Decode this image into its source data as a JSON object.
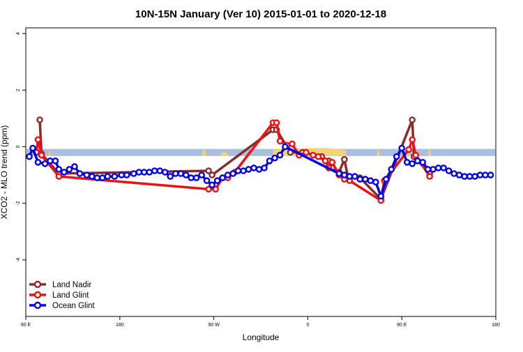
{
  "chart_data": {
    "type": "line",
    "title": "10N-15N January (Ver 10)   2015-01-01 to 2020-12-18",
    "xlabel": "Longitude",
    "ylabel": "XCO2 - MLO trend (ppm)",
    "xlim": [
      -90,
      180
    ],
    "ylim": [
      -6,
      4.2
    ],
    "x_ticks": [
      {
        "value": -90,
        "label": "90 E"
      },
      {
        "value": -36,
        "label": "180"
      },
      {
        "value": 18,
        "label": "90 W"
      },
      {
        "value": 72,
        "label": "0"
      },
      {
        "value": 126,
        "label": "90 E"
      },
      {
        "value": 180,
        "label": "180"
      }
    ],
    "y_ticks": [
      {
        "value": -4,
        "label": "-4"
      },
      {
        "value": -2,
        "label": "-2"
      },
      {
        "value": 0,
        "label": "0"
      },
      {
        "value": 2,
        "label": "2"
      },
      {
        "value": 4,
        "label": "4"
      }
    ],
    "legend_position": "bottom-left",
    "background": {
      "band": {
        "y_from": -0.33,
        "y_to": -0.08,
        "color": "#a9bfe0"
      },
      "land_color": "#f6d276"
    },
    "series": [
      {
        "name": "Land Nadir",
        "color": "#8b2a2a",
        "points": [
          [
            -82,
            0.95
          ],
          [
            -81,
            -0.25
          ],
          [
            -71,
            -0.95
          ],
          [
            15,
            -0.85
          ],
          [
            17,
            -1.0
          ],
          [
            52,
            0.6
          ],
          [
            54,
            0.6
          ],
          [
            62,
            -0.2
          ],
          [
            69,
            -0.2
          ],
          [
            80,
            -0.35
          ],
          [
            84,
            -0.5
          ],
          [
            86,
            -0.75
          ],
          [
            90,
            -0.9
          ],
          [
            93,
            -0.45
          ],
          [
            95,
            -1.05
          ],
          [
            102,
            -1.1
          ],
          [
            114,
            -1.85
          ],
          [
            132,
            0.95
          ],
          [
            133,
            -0.35
          ],
          [
            142,
            -0.95
          ]
        ]
      },
      {
        "name": "Land Glint",
        "color": "#ee1111",
        "points": [
          [
            -84,
            -0.2
          ],
          [
            -83,
            0.25
          ],
          [
            -81,
            -0.3
          ],
          [
            -71,
            -1.05
          ],
          [
            15,
            -1.5
          ],
          [
            19,
            -1.5
          ],
          [
            23,
            -1.1
          ],
          [
            26,
            -1.1
          ],
          [
            30,
            -0.9
          ],
          [
            52,
            0.85
          ],
          [
            54,
            0.85
          ],
          [
            56,
            0.2
          ],
          [
            60,
            0.05
          ],
          [
            63,
            0.1
          ],
          [
            67,
            -0.3
          ],
          [
            71,
            -0.2
          ],
          [
            75,
            -0.3
          ],
          [
            78,
            -0.35
          ],
          [
            82,
            -0.5
          ],
          [
            84,
            -0.75
          ],
          [
            86,
            -0.55
          ],
          [
            90,
            -1.0
          ],
          [
            93,
            -1.15
          ],
          [
            96,
            -1.2
          ],
          [
            114,
            -1.9
          ],
          [
            116,
            -1.2
          ],
          [
            130,
            -0.1
          ],
          [
            132,
            0.25
          ],
          [
            134,
            -0.3
          ],
          [
            142,
            -1.05
          ]
        ]
      },
      {
        "name": "Ocean Glint",
        "color": "#0000ee",
        "points": [
          [
            -88,
            -0.35
          ],
          [
            -86,
            -0.05
          ],
          [
            -83,
            -0.55
          ],
          [
            -79,
            -0.6
          ],
          [
            -76,
            -0.5
          ],
          [
            -73,
            -0.5
          ],
          [
            -71,
            -0.8
          ],
          [
            -68,
            -0.9
          ],
          [
            -65,
            -0.8
          ],
          [
            -62,
            -0.7
          ],
          [
            -59,
            -0.95
          ],
          [
            -55,
            -1.0
          ],
          [
            -52,
            -1.05
          ],
          [
            -49,
            -1.1
          ],
          [
            -46,
            -1.1
          ],
          [
            -43,
            -1.05
          ],
          [
            -39,
            -1.05
          ],
          [
            -35,
            -1.0
          ],
          [
            -32,
            -1.0
          ],
          [
            -28,
            -0.95
          ],
          [
            -25,
            -0.9
          ],
          [
            -22,
            -0.9
          ],
          [
            -19,
            -0.9
          ],
          [
            -16,
            -0.85
          ],
          [
            -13,
            -0.85
          ],
          [
            -10,
            -0.9
          ],
          [
            -7,
            -1.05
          ],
          [
            -4,
            -0.95
          ],
          [
            -1,
            -0.95
          ],
          [
            2,
            -1.0
          ],
          [
            5,
            -1.1
          ],
          [
            8,
            -1.1
          ],
          [
            11,
            -1.0
          ],
          [
            14,
            -1.2
          ],
          [
            17,
            -1.35
          ],
          [
            20,
            -1.2
          ],
          [
            23,
            -1.1
          ],
          [
            26,
            -1.0
          ],
          [
            29,
            -0.95
          ],
          [
            32,
            -0.85
          ],
          [
            35,
            -0.85
          ],
          [
            38,
            -0.8
          ],
          [
            41,
            -0.75
          ],
          [
            44,
            -0.8
          ],
          [
            47,
            -0.75
          ],
          [
            50,
            -0.5
          ],
          [
            53,
            -0.4
          ],
          [
            56,
            -0.3
          ],
          [
            59,
            0.0
          ],
          [
            90,
            -0.95
          ],
          [
            93,
            -1.0
          ],
          [
            96,
            -1.05
          ],
          [
            99,
            -1.05
          ],
          [
            102,
            -1.15
          ],
          [
            105,
            -1.15
          ],
          [
            108,
            -1.2
          ],
          [
            111,
            -1.25
          ],
          [
            114,
            -1.75
          ],
          [
            117,
            -1.15
          ],
          [
            120,
            -0.8
          ],
          [
            123,
            -0.35
          ],
          [
            126,
            -0.05
          ],
          [
            129,
            -0.55
          ],
          [
            132,
            -0.6
          ],
          [
            135,
            -0.5
          ],
          [
            138,
            -0.55
          ],
          [
            141,
            -0.8
          ],
          [
            144,
            -0.8
          ],
          [
            147,
            -0.75
          ],
          [
            150,
            -0.75
          ],
          [
            153,
            -0.85
          ],
          [
            156,
            -0.95
          ],
          [
            159,
            -1.0
          ],
          [
            162,
            -1.05
          ],
          [
            165,
            -1.05
          ],
          [
            168,
            -1.05
          ],
          [
            171,
            -1.0
          ],
          [
            174,
            -1.0
          ],
          [
            177,
            -1.0
          ]
        ]
      }
    ]
  }
}
